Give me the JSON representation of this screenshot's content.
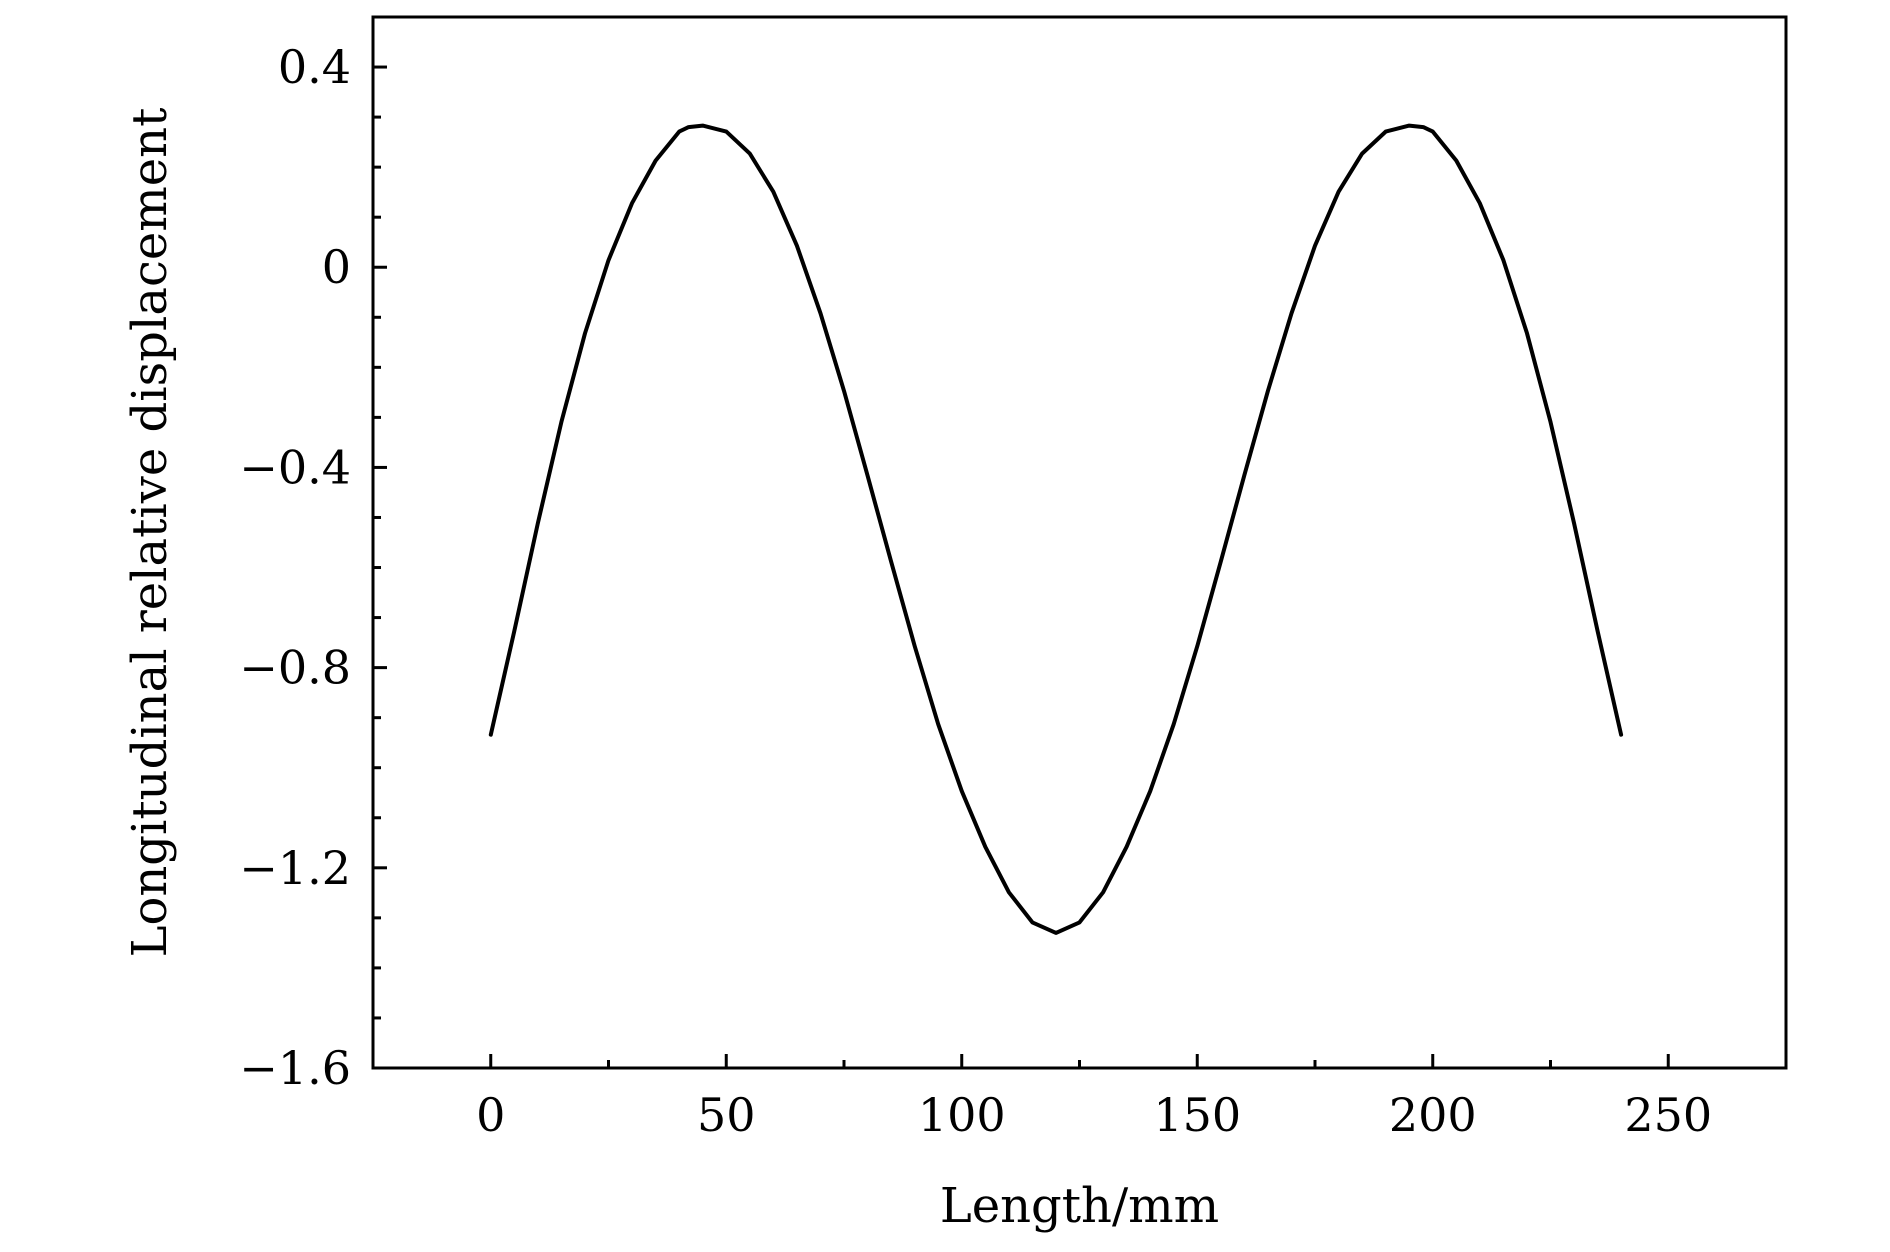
{
  "chart_data": {
    "type": "line",
    "title": "",
    "xlabel": "Length/mm",
    "ylabel": "Longitudinal relative displacement",
    "xlim": [
      -25,
      275
    ],
    "ylim": [
      -1.6,
      0.5
    ],
    "x_ticks": [
      0,
      50,
      100,
      150,
      200,
      250
    ],
    "x_tick_labels": [
      "0",
      "50",
      "100",
      "150",
      "200",
      "250"
    ],
    "y_ticks": [
      -1.6,
      -1.2,
      -0.8,
      -0.4,
      0,
      0.4
    ],
    "y_tick_labels": [
      "−1.6",
      "−1.2",
      "−0.8",
      "−0.4",
      "0",
      "0.4"
    ],
    "x_minor_ticks": [
      25,
      75,
      125,
      175,
      225
    ],
    "y_minor_ticks": [
      -1.5,
      -1.4,
      -1.3,
      -1.1,
      -1.0,
      -0.9,
      -0.7,
      -0.6,
      -0.5,
      -0.3,
      -0.2,
      -0.1,
      0.1,
      0.2,
      0.3
    ],
    "grid": false,
    "colors": {
      "line": "#000000",
      "axes": "#000000",
      "background": "#ffffff"
    },
    "series": [
      {
        "x": [
          0,
          5,
          10,
          15,
          20,
          25,
          30,
          35,
          40,
          42,
          45,
          50,
          55,
          60,
          65,
          70,
          75,
          80,
          85,
          90,
          95,
          100,
          105,
          110,
          115,
          120,
          125,
          130,
          135,
          140,
          145,
          150,
          155,
          160,
          165,
          170,
          175,
          180,
          185,
          190,
          195,
          198,
          200,
          205,
          210,
          215,
          220,
          225,
          230,
          235,
          240
        ],
        "y": [
          -0.934,
          -0.727,
          -0.511,
          -0.309,
          -0.132,
          0.014,
          0.128,
          0.213,
          0.271,
          0.28,
          0.283,
          0.271,
          0.227,
          0.151,
          0.043,
          -0.092,
          -0.247,
          -0.416,
          -0.588,
          -0.757,
          -0.913,
          -1.047,
          -1.158,
          -1.249,
          -1.309,
          -1.33,
          -1.309,
          -1.249,
          -1.158,
          -1.047,
          -0.913,
          -0.757,
          -0.588,
          -0.416,
          -0.247,
          -0.092,
          0.043,
          0.151,
          0.227,
          0.271,
          0.283,
          0.28,
          0.271,
          0.213,
          0.128,
          0.014,
          -0.132,
          -0.309,
          -0.511,
          -0.727,
          -0.934
        ]
      }
    ]
  }
}
